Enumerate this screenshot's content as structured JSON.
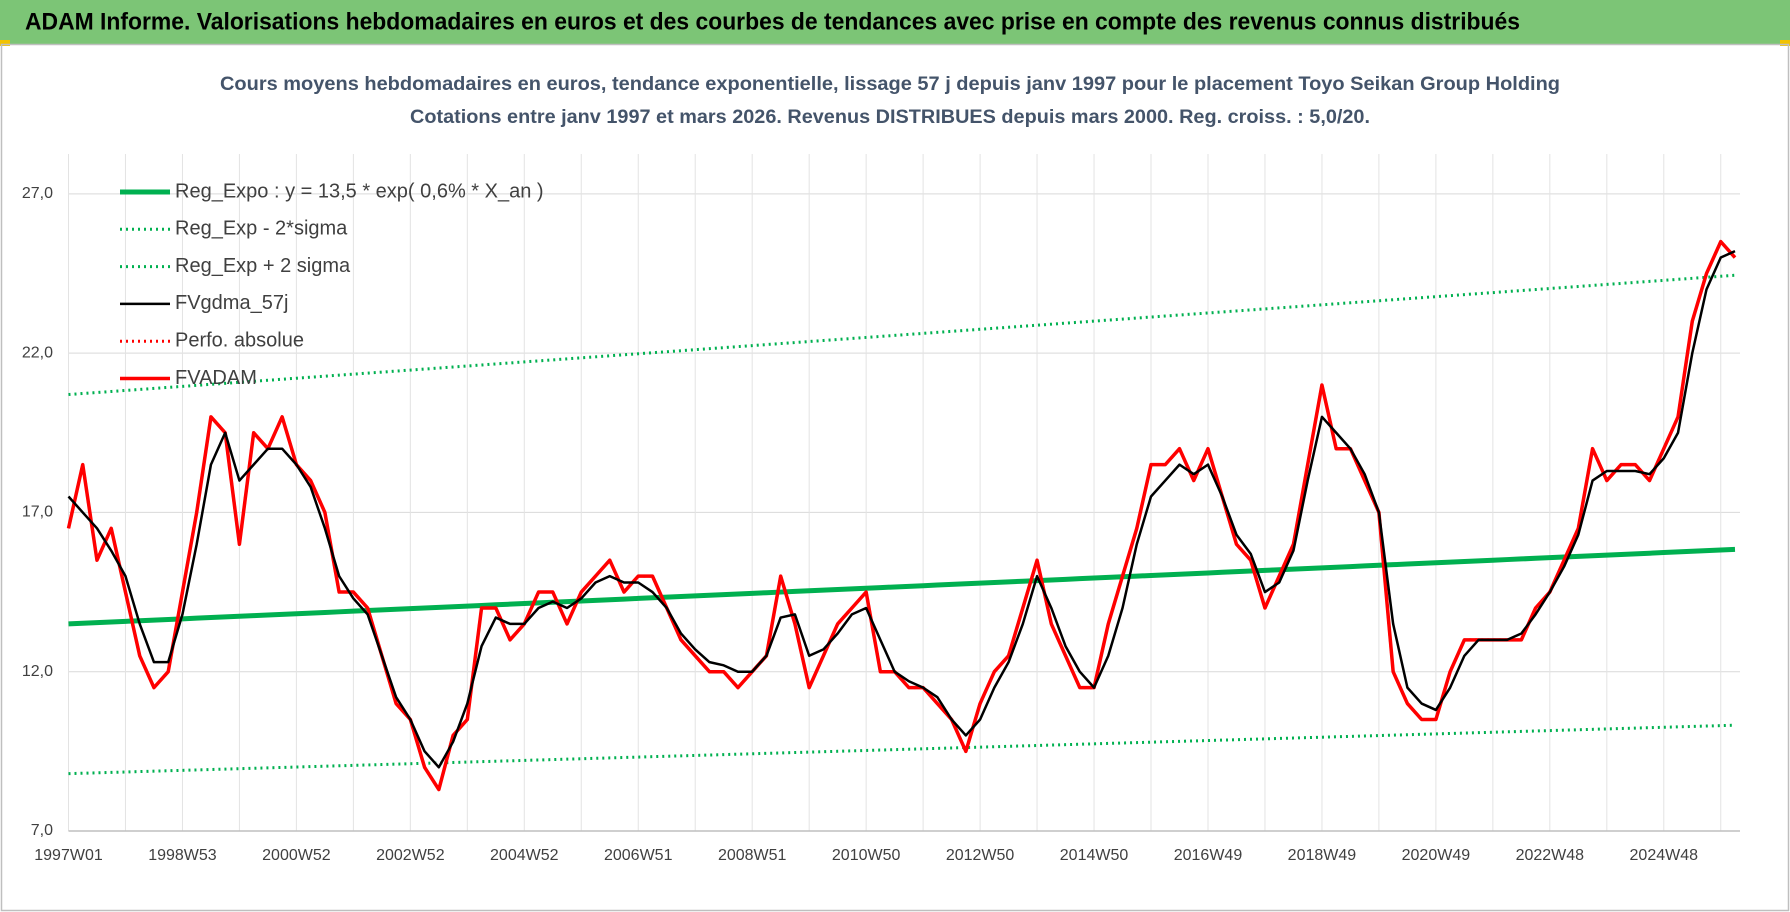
{
  "header": {
    "title": "ADAM Informe. Valorisations hebdomadaires en euros et des courbes de tendances avec prise en compte des revenus connus distribués"
  },
  "chart_data": {
    "type": "line",
    "title": "Cours moyens hebdomadaires en euros, tendance exponentielle, lissage 57 j depuis janv 1997 pour le placement Toyo Seikan Group Holding",
    "subtitle": "Cotations entre janv 1997 et mars 2026. Revenus DISTRIBUES depuis mars 2000. Reg. croiss. : 5,0/20.",
    "legend": "top-left",
    "grid": true,
    "ylim": [
      7,
      28.25
    ],
    "yticks": [
      {
        "value": 7,
        "label": "7,0"
      },
      {
        "value": 12,
        "label": "12,0"
      },
      {
        "value": 17,
        "label": "17,0"
      },
      {
        "value": 22,
        "label": "22,0"
      },
      {
        "value": 27,
        "label": "27,0"
      }
    ],
    "categories": [
      "1997W01",
      null,
      null,
      null,
      null,
      null,
      null,
      null,
      "1998W53",
      null,
      null,
      null,
      null,
      null,
      null,
      null,
      "2000W52",
      null,
      null,
      null,
      null,
      null,
      null,
      null,
      "2002W52",
      null,
      null,
      null,
      null,
      null,
      null,
      null,
      "2004W52",
      null,
      null,
      null,
      null,
      null,
      null,
      null,
      "2006W51",
      null,
      null,
      null,
      null,
      null,
      null,
      null,
      "2008W51",
      null,
      null,
      null,
      null,
      null,
      null,
      null,
      "2010W50",
      null,
      null,
      null,
      null,
      null,
      null,
      null,
      "2012W50",
      null,
      null,
      null,
      null,
      null,
      null,
      null,
      "2014W50",
      null,
      null,
      null,
      null,
      null,
      null,
      null,
      "2016W49",
      null,
      null,
      null,
      null,
      null,
      null,
      null,
      "2018W49",
      null,
      null,
      null,
      null,
      null,
      null,
      null,
      "2020W49",
      null,
      null,
      null,
      null,
      null,
      null,
      null,
      "2022W48",
      null,
      null,
      null,
      null,
      null,
      null,
      null,
      "2024W48",
      null,
      null,
      null,
      null,
      null
    ],
    "series": [
      {
        "name": "Reg_Expo : y = 13,5 * exp( 0,6% *  X_an )",
        "color": "#00b050",
        "line_style": "solid",
        "values": [
          13.5,
          13.52,
          13.54,
          13.56,
          13.58,
          13.6,
          13.62,
          13.64,
          13.66,
          13.68,
          13.7,
          13.72,
          13.74,
          13.76,
          13.78,
          13.8,
          13.82,
          13.84,
          13.86,
          13.88,
          13.9,
          13.92,
          13.94,
          13.96,
          13.98,
          14.0,
          14.02,
          14.04,
          14.06,
          14.08,
          14.1,
          14.12,
          14.14,
          14.16,
          14.18,
          14.2,
          14.22,
          14.24,
          14.26,
          14.28,
          14.3,
          14.32,
          14.34,
          14.36,
          14.38,
          14.4,
          14.42,
          14.44,
          14.46,
          14.48,
          14.5,
          14.52,
          14.54,
          14.56,
          14.58,
          14.6,
          14.62,
          14.64,
          14.66,
          14.68,
          14.7,
          14.72,
          14.74,
          14.76,
          14.78,
          14.8,
          14.82,
          14.84,
          14.86,
          14.88,
          14.9,
          14.92,
          14.94,
          14.96,
          14.98,
          15.0,
          15.02,
          15.04,
          15.06,
          15.08,
          15.1,
          15.12,
          15.14,
          15.16,
          15.18,
          15.2,
          15.22,
          15.24,
          15.26,
          15.28,
          15.3,
          15.32,
          15.34,
          15.36,
          15.38,
          15.4,
          15.42,
          15.44,
          15.46,
          15.48,
          15.5,
          15.52,
          15.54,
          15.56,
          15.58,
          15.6,
          15.62,
          15.64,
          15.66,
          15.68,
          15.7,
          15.72,
          15.74,
          15.76,
          15.78,
          15.8,
          15.82,
          15.84
        ]
      },
      {
        "name": "Reg_Exp - 2*sigma",
        "color": "#00b050",
        "line_style": "dotted",
        "values": [
          8.8,
          8.813,
          8.826,
          8.839,
          8.852,
          8.865,
          8.878,
          8.891,
          8.904,
          8.917,
          8.93,
          8.943,
          8.956,
          8.969,
          8.982,
          8.995,
          9.008,
          9.021,
          9.034,
          9.047,
          9.06,
          9.073,
          9.086,
          9.099,
          9.112,
          9.125,
          9.138,
          9.151,
          9.164,
          9.177,
          9.19,
          9.203,
          9.216,
          9.229,
          9.242,
          9.255,
          9.268,
          9.281,
          9.294,
          9.307,
          9.32,
          9.333,
          9.346,
          9.359,
          9.372,
          9.385,
          9.398,
          9.411,
          9.424,
          9.437,
          9.45,
          9.463,
          9.476,
          9.489,
          9.502,
          9.515,
          9.528,
          9.541,
          9.554,
          9.567,
          9.58,
          9.593,
          9.606,
          9.619,
          9.632,
          9.645,
          9.658,
          9.671,
          9.684,
          9.697,
          9.71,
          9.723,
          9.736,
          9.749,
          9.762,
          9.775,
          9.788,
          9.801,
          9.814,
          9.827,
          9.84,
          9.853,
          9.866,
          9.879,
          9.892,
          9.905,
          9.918,
          9.931,
          9.944,
          9.957,
          9.97,
          9.983,
          9.996,
          10.009,
          10.022,
          10.035,
          10.048,
          10.061,
          10.074,
          10.087,
          10.1,
          10.113,
          10.126,
          10.139,
          10.152,
          10.165,
          10.178,
          10.191,
          10.204,
          10.217,
          10.23,
          10.243,
          10.256,
          10.269,
          10.282,
          10.295,
          10.308,
          10.321
        ]
      },
      {
        "name": "Reg_Exp + 2 sigma",
        "color": "#00b050",
        "line_style": "dotted",
        "values": [
          20.7,
          20.732,
          20.764,
          20.796,
          20.828,
          20.86,
          20.892,
          20.924,
          20.956,
          20.988,
          21.02,
          21.052,
          21.084,
          21.116,
          21.148,
          21.18,
          21.212,
          21.244,
          21.276,
          21.308,
          21.34,
          21.372,
          21.404,
          21.436,
          21.468,
          21.5,
          21.532,
          21.564,
          21.596,
          21.628,
          21.66,
          21.692,
          21.724,
          21.756,
          21.788,
          21.82,
          21.852,
          21.884,
          21.916,
          21.948,
          21.98,
          22.012,
          22.044,
          22.076,
          22.108,
          22.14,
          22.172,
          22.204,
          22.236,
          22.268,
          22.3,
          22.332,
          22.364,
          22.396,
          22.428,
          22.46,
          22.492,
          22.524,
          22.556,
          22.588,
          22.62,
          22.652,
          22.684,
          22.716,
          22.748,
          22.78,
          22.812,
          22.844,
          22.876,
          22.908,
          22.94,
          22.972,
          23.004,
          23.036,
          23.068,
          23.1,
          23.132,
          23.164,
          23.196,
          23.228,
          23.26,
          23.292,
          23.324,
          23.356,
          23.388,
          23.42,
          23.452,
          23.484,
          23.516,
          23.548,
          23.58,
          23.612,
          23.644,
          23.676,
          23.708,
          23.74,
          23.772,
          23.804,
          23.836,
          23.868,
          23.9,
          23.932,
          23.964,
          23.996,
          24.028,
          24.06,
          24.092,
          24.124,
          24.156,
          24.188,
          24.22,
          24.252,
          24.284,
          24.316,
          24.348,
          24.38,
          24.412,
          24.444
        ]
      },
      {
        "name": "FVgdma_57j",
        "color": "#000000",
        "line_style": "solid",
        "values": [
          17.5,
          17,
          16.5,
          15.8,
          15,
          13.5,
          12.3,
          12.3,
          13.8,
          16,
          18.5,
          19.5,
          18,
          18.5,
          19,
          19,
          18.5,
          17.8,
          16.5,
          15,
          14.3,
          13.8,
          12.5,
          11.2,
          10.5,
          9.5,
          9,
          9.8,
          11,
          12.8,
          13.7,
          13.5,
          13.5,
          14,
          14.2,
          14,
          14.3,
          14.8,
          15,
          14.8,
          14.8,
          14.5,
          14,
          13.2,
          12.7,
          12.3,
          12.2,
          12,
          12,
          12.5,
          13.7,
          13.8,
          12.5,
          12.7,
          13.2,
          13.8,
          14,
          13,
          12,
          11.7,
          11.5,
          11.2,
          10.5,
          10,
          10.5,
          11.5,
          12.3,
          13.5,
          15,
          14,
          12.8,
          12,
          11.5,
          12.5,
          14,
          16,
          17.5,
          18,
          18.5,
          18.2,
          18.5,
          17.5,
          16.3,
          15.7,
          14.5,
          14.8,
          15.8,
          18,
          20,
          19.5,
          19,
          18.2,
          17,
          13.5,
          11.5,
          11,
          10.8,
          11.5,
          12.5,
          13,
          13,
          13,
          13.2,
          13.8,
          14.5,
          15.3,
          16.3,
          18,
          18.3,
          18.3,
          18.3,
          18.2,
          18.7,
          19.5,
          22,
          24,
          25,
          25.2
        ]
      },
      {
        "name": "Perfo. absolue",
        "color": "#ff0000",
        "line_style": "dotted",
        "values": [
          16.5,
          18.5,
          15.5,
          16.5,
          14.5,
          12.5,
          11.5,
          12,
          14.5,
          17,
          20,
          19.5,
          16,
          19.5,
          19,
          20,
          18.5,
          18,
          17,
          14.5,
          14.5,
          14,
          12.5,
          11,
          10.5,
          9,
          8.3,
          10,
          10.5,
          14,
          14,
          13,
          13.5,
          14.5,
          14.5,
          13.5,
          14.5,
          15,
          15.5,
          14.5,
          15,
          15,
          14,
          13,
          12.5,
          12,
          12,
          11.5,
          12,
          12.5,
          15,
          13.5,
          11.5,
          12.5,
          13.5,
          14,
          14.5,
          12,
          12,
          11.5,
          11.5,
          11,
          10.5,
          9.5,
          11,
          12,
          12.5,
          14,
          15.5,
          13.5,
          12.5,
          11.5,
          11.5,
          13.5,
          15,
          16.5,
          18.5,
          18.5,
          19,
          18,
          19,
          17.5,
          16,
          15.5,
          14,
          15,
          16,
          18.5,
          21,
          19,
          19,
          18,
          17,
          12,
          11,
          10.5,
          10.5,
          12,
          13,
          13,
          13,
          13,
          13,
          14,
          14.5,
          15.5,
          16.5,
          19,
          18,
          18.5,
          18.5,
          18,
          19,
          20,
          23,
          24.5,
          25.5,
          25
        ]
      },
      {
        "name": "FVADAM",
        "color": "#ff0000",
        "line_style": "solid",
        "values": [
          16.5,
          18.5,
          15.5,
          16.5,
          14.5,
          12.5,
          11.5,
          12,
          14.5,
          17,
          20,
          19.5,
          16,
          19.5,
          19,
          20,
          18.5,
          18,
          17,
          14.5,
          14.5,
          14,
          12.5,
          11,
          10.5,
          9,
          8.3,
          10,
          10.5,
          14,
          14,
          13,
          13.5,
          14.5,
          14.5,
          13.5,
          14.5,
          15,
          15.5,
          14.5,
          15,
          15,
          14,
          13,
          12.5,
          12,
          12,
          11.5,
          12,
          12.5,
          15,
          13.5,
          11.5,
          12.5,
          13.5,
          14,
          14.5,
          12,
          12,
          11.5,
          11.5,
          11,
          10.5,
          9.5,
          11,
          12,
          12.5,
          14,
          15.5,
          13.5,
          12.5,
          11.5,
          11.5,
          13.5,
          15,
          16.5,
          18.5,
          18.5,
          19,
          18,
          19,
          17.5,
          16,
          15.5,
          14,
          15,
          16,
          18.5,
          21,
          19,
          19,
          18,
          17,
          12,
          11,
          10.5,
          10.5,
          12,
          13,
          13,
          13,
          13,
          13,
          14,
          14.5,
          15.5,
          16.5,
          19,
          18,
          18.5,
          18.5,
          18,
          19,
          20,
          23,
          24.5,
          25.5,
          25
        ]
      }
    ]
  }
}
